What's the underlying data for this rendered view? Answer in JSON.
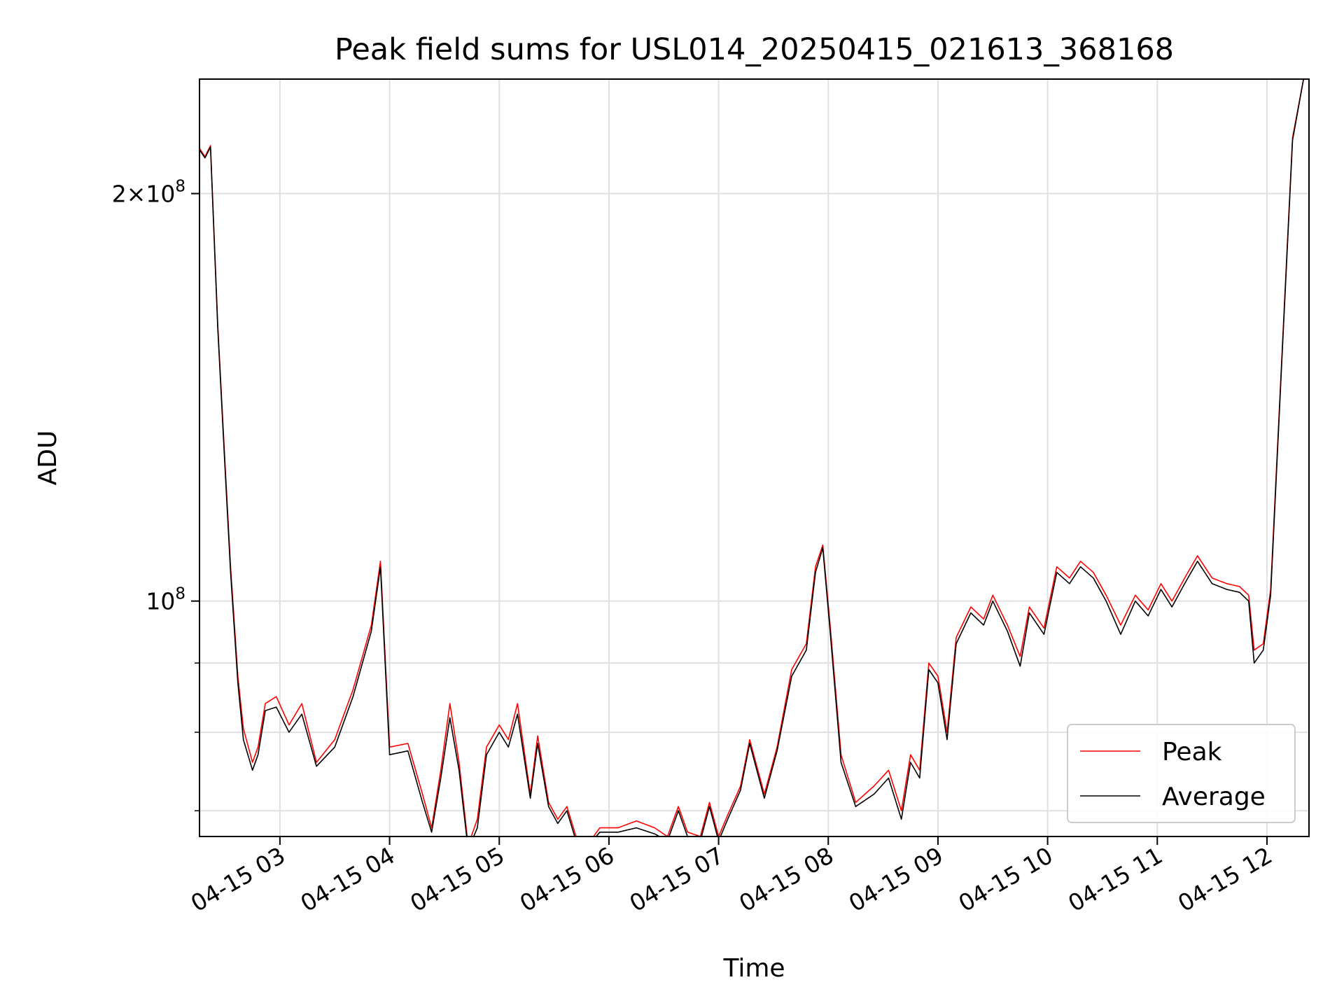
{
  "chart_data": {
    "type": "line",
    "title": "Peak field sums for USL014_20250415_021613_368168",
    "xlabel": "Time",
    "ylabel": "ADU",
    "x_range": [
      "2025-04-15 02:16",
      "2025-04-15 12:23"
    ],
    "ylim": [
      67000000,
      243000000
    ],
    "yscale": "log",
    "grid": true,
    "legend_position": "lower-right",
    "x_ticks": [
      {
        "t": "2025-04-15 03:00",
        "label": "04-15 03"
      },
      {
        "t": "2025-04-15 04:00",
        "label": "04-15 04"
      },
      {
        "t": "2025-04-15 05:00",
        "label": "04-15 05"
      },
      {
        "t": "2025-04-15 06:00",
        "label": "04-15 06"
      },
      {
        "t": "2025-04-15 07:00",
        "label": "04-15 07"
      },
      {
        "t": "2025-04-15 08:00",
        "label": "04-15 08"
      },
      {
        "t": "2025-04-15 09:00",
        "label": "04-15 09"
      },
      {
        "t": "2025-04-15 10:00",
        "label": "04-15 10"
      },
      {
        "t": "2025-04-15 11:00",
        "label": "04-15 11"
      },
      {
        "t": "2025-04-15 12:00",
        "label": "04-15 12"
      }
    ],
    "y_major_ticks": [
      {
        "value": 100000000,
        "mantissa": "",
        "exponent": "8"
      },
      {
        "value": 200000000,
        "mantissa": "2×",
        "exponent": "8"
      }
    ],
    "y_minor_ticks": [
      70000000,
      80000000,
      90000000
    ],
    "series": [
      {
        "name": "Peak",
        "color": "#ff0000",
        "points": [
          [
            "2025-04-15 02:16",
            216000000
          ],
          [
            "2025-04-15 02:19",
            213000000
          ],
          [
            "2025-04-15 02:22",
            217000000
          ],
          [
            "2025-04-15 02:26",
            160000000
          ],
          [
            "2025-04-15 02:30",
            126000000
          ],
          [
            "2025-04-15 02:33",
            106000000
          ],
          [
            "2025-04-15 02:37",
            88000000
          ],
          [
            "2025-04-15 02:40",
            80500000
          ],
          [
            "2025-04-15 02:45",
            76000000
          ],
          [
            "2025-04-15 02:48",
            78000000
          ],
          [
            "2025-04-15 02:52",
            84000000
          ],
          [
            "2025-04-15 02:58",
            85000000
          ],
          [
            "2025-04-15 03:05",
            81000000
          ],
          [
            "2025-04-15 03:12",
            84000000
          ],
          [
            "2025-04-15 03:20",
            76000000
          ],
          [
            "2025-04-15 03:30",
            79000000
          ],
          [
            "2025-04-15 03:40",
            86000000
          ],
          [
            "2025-04-15 03:50",
            96000000
          ],
          [
            "2025-04-15 03:55",
            107000000
          ],
          [
            "2025-04-15 04:00",
            78000000
          ],
          [
            "2025-04-15 04:10",
            78500000
          ],
          [
            "2025-04-15 04:18",
            72000000
          ],
          [
            "2025-04-15 04:23",
            68000000
          ],
          [
            "2025-04-15 04:28",
            75000000
          ],
          [
            "2025-04-15 04:33",
            84000000
          ],
          [
            "2025-04-15 04:38",
            76000000
          ],
          [
            "2025-04-15 04:43",
            66000000
          ],
          [
            "2025-04-15 04:48",
            69000000
          ],
          [
            "2025-04-15 04:53",
            78000000
          ],
          [
            "2025-04-15 05:00",
            81000000
          ],
          [
            "2025-04-15 05:05",
            79000000
          ],
          [
            "2025-04-15 05:10",
            84000000
          ],
          [
            "2025-04-15 05:17",
            72000000
          ],
          [
            "2025-04-15 05:21",
            79500000
          ],
          [
            "2025-04-15 05:27",
            71000000
          ],
          [
            "2025-04-15 05:32",
            69000000
          ],
          [
            "2025-04-15 05:37",
            70500000
          ],
          [
            "2025-04-15 05:42",
            67000000
          ],
          [
            "2025-04-15 05:48",
            66000000
          ],
          [
            "2025-04-15 05:55",
            68000000
          ],
          [
            "2025-04-15 06:05",
            68000000
          ],
          [
            "2025-04-15 06:15",
            68800000
          ],
          [
            "2025-04-15 06:25",
            68000000
          ],
          [
            "2025-04-15 06:32",
            67000000
          ],
          [
            "2025-04-15 06:38",
            70500000
          ],
          [
            "2025-04-15 06:43",
            67500000
          ],
          [
            "2025-04-15 06:50",
            67000000
          ],
          [
            "2025-04-15 06:55",
            71000000
          ],
          [
            "2025-04-15 07:00",
            67000000
          ],
          [
            "2025-04-15 07:05",
            69500000
          ],
          [
            "2025-04-15 07:12",
            73000000
          ],
          [
            "2025-04-15 07:17",
            79000000
          ],
          [
            "2025-04-15 07:25",
            72000000
          ],
          [
            "2025-04-15 07:32",
            78000000
          ],
          [
            "2025-04-15 07:40",
            89000000
          ],
          [
            "2025-04-15 07:48",
            93000000
          ],
          [
            "2025-04-15 07:53",
            106000000
          ],
          [
            "2025-04-15 07:57",
            110000000
          ],
          [
            "2025-04-15 08:01",
            96000000
          ],
          [
            "2025-04-15 08:07",
            77000000
          ],
          [
            "2025-04-15 08:15",
            71000000
          ],
          [
            "2025-04-15 08:25",
            73000000
          ],
          [
            "2025-04-15 08:33",
            75000000
          ],
          [
            "2025-04-15 08:40",
            70000000
          ],
          [
            "2025-04-15 08:45",
            77000000
          ],
          [
            "2025-04-15 08:50",
            75000000
          ],
          [
            "2025-04-15 08:55",
            90000000
          ],
          [
            "2025-04-15 09:00",
            88000000
          ],
          [
            "2025-04-15 09:05",
            80000000
          ],
          [
            "2025-04-15 09:10",
            94000000
          ],
          [
            "2025-04-15 09:18",
            99000000
          ],
          [
            "2025-04-15 09:25",
            97000000
          ],
          [
            "2025-04-15 09:30",
            101000000
          ],
          [
            "2025-04-15 09:38",
            96000000
          ],
          [
            "2025-04-15 09:45",
            91000000
          ],
          [
            "2025-04-15 09:50",
            99000000
          ],
          [
            "2025-04-15 09:58",
            95500000
          ],
          [
            "2025-04-15 10:05",
            106000000
          ],
          [
            "2025-04-15 10:12",
            104000000
          ],
          [
            "2025-04-15 10:18",
            107000000
          ],
          [
            "2025-04-15 10:25",
            105000000
          ],
          [
            "2025-04-15 10:32",
            101000000
          ],
          [
            "2025-04-15 10:40",
            96000000
          ],
          [
            "2025-04-15 10:48",
            101000000
          ],
          [
            "2025-04-15 10:55",
            98500000
          ],
          [
            "2025-04-15 11:02",
            103000000
          ],
          [
            "2025-04-15 11:08",
            100000000
          ],
          [
            "2025-04-15 11:15",
            104000000
          ],
          [
            "2025-04-15 11:22",
            108000000
          ],
          [
            "2025-04-15 11:30",
            104000000
          ],
          [
            "2025-04-15 11:38",
            103000000
          ],
          [
            "2025-04-15 11:45",
            102500000
          ],
          [
            "2025-04-15 11:50",
            101000000
          ],
          [
            "2025-04-15 11:53",
            92000000
          ],
          [
            "2025-04-15 11:58",
            93000000
          ],
          [
            "2025-04-15 12:02",
            102000000
          ],
          [
            "2025-04-15 12:08",
            150000000
          ],
          [
            "2025-04-15 12:14",
            220000000
          ],
          [
            "2025-04-15 12:20",
            243000000
          ]
        ]
      },
      {
        "name": "Average",
        "color": "#000000",
        "points": [
          [
            "2025-04-15 02:16",
            215500000
          ],
          [
            "2025-04-15 02:19",
            212500000
          ],
          [
            "2025-04-15 02:22",
            216500000
          ],
          [
            "2025-04-15 02:26",
            159000000
          ],
          [
            "2025-04-15 02:30",
            125000000
          ],
          [
            "2025-04-15 02:33",
            105000000
          ],
          [
            "2025-04-15 02:37",
            87000000
          ],
          [
            "2025-04-15 02:40",
            79000000
          ],
          [
            "2025-04-15 02:45",
            75000000
          ],
          [
            "2025-04-15 02:48",
            77000000
          ],
          [
            "2025-04-15 02:52",
            83000000
          ],
          [
            "2025-04-15 02:58",
            83500000
          ],
          [
            "2025-04-15 03:05",
            80000000
          ],
          [
            "2025-04-15 03:12",
            82500000
          ],
          [
            "2025-04-15 03:20",
            75500000
          ],
          [
            "2025-04-15 03:30",
            78000000
          ],
          [
            "2025-04-15 03:40",
            85000000
          ],
          [
            "2025-04-15 03:50",
            95000000
          ],
          [
            "2025-04-15 03:55",
            106000000
          ],
          [
            "2025-04-15 04:00",
            77000000
          ],
          [
            "2025-04-15 04:10",
            77500000
          ],
          [
            "2025-04-15 04:18",
            71000000
          ],
          [
            "2025-04-15 04:23",
            67500000
          ],
          [
            "2025-04-15 04:28",
            74000000
          ],
          [
            "2025-04-15 04:33",
            82000000
          ],
          [
            "2025-04-15 04:38",
            75000000
          ],
          [
            "2025-04-15 04:43",
            65500000
          ],
          [
            "2025-04-15 04:48",
            68000000
          ],
          [
            "2025-04-15 04:53",
            77000000
          ],
          [
            "2025-04-15 05:00",
            80000000
          ],
          [
            "2025-04-15 05:05",
            78000000
          ],
          [
            "2025-04-15 05:10",
            82500000
          ],
          [
            "2025-04-15 05:17",
            71500000
          ],
          [
            "2025-04-15 05:21",
            78500000
          ],
          [
            "2025-04-15 05:27",
            70500000
          ],
          [
            "2025-04-15 05:32",
            68500000
          ],
          [
            "2025-04-15 05:37",
            70000000
          ],
          [
            "2025-04-15 05:42",
            66500000
          ],
          [
            "2025-04-15 05:48",
            65800000
          ],
          [
            "2025-04-15 05:55",
            67500000
          ],
          [
            "2025-04-15 06:05",
            67500000
          ],
          [
            "2025-04-15 06:15",
            68000000
          ],
          [
            "2025-04-15 06:25",
            67300000
          ],
          [
            "2025-04-15 06:32",
            66500000
          ],
          [
            "2025-04-15 06:38",
            70000000
          ],
          [
            "2025-04-15 06:43",
            67000000
          ],
          [
            "2025-04-15 06:50",
            66500000
          ],
          [
            "2025-04-15 06:55",
            70500000
          ],
          [
            "2025-04-15 07:00",
            66500000
          ],
          [
            "2025-04-15 07:05",
            69000000
          ],
          [
            "2025-04-15 07:12",
            72500000
          ],
          [
            "2025-04-15 07:17",
            78500000
          ],
          [
            "2025-04-15 07:25",
            71500000
          ],
          [
            "2025-04-15 07:32",
            77500000
          ],
          [
            "2025-04-15 07:40",
            88000000
          ],
          [
            "2025-04-15 07:48",
            92000000
          ],
          [
            "2025-04-15 07:53",
            105000000
          ],
          [
            "2025-04-15 07:57",
            109500000
          ],
          [
            "2025-04-15 08:01",
            95000000
          ],
          [
            "2025-04-15 08:07",
            76000000
          ],
          [
            "2025-04-15 08:15",
            70500000
          ],
          [
            "2025-04-15 08:25",
            72000000
          ],
          [
            "2025-04-15 08:33",
            74000000
          ],
          [
            "2025-04-15 08:40",
            69000000
          ],
          [
            "2025-04-15 08:45",
            76000000
          ],
          [
            "2025-04-15 08:50",
            74000000
          ],
          [
            "2025-04-15 08:55",
            89000000
          ],
          [
            "2025-04-15 09:00",
            87000000
          ],
          [
            "2025-04-15 09:05",
            79000000
          ],
          [
            "2025-04-15 09:10",
            93000000
          ],
          [
            "2025-04-15 09:18",
            98000000
          ],
          [
            "2025-04-15 09:25",
            96000000
          ],
          [
            "2025-04-15 09:30",
            100000000
          ],
          [
            "2025-04-15 09:38",
            95000000
          ],
          [
            "2025-04-15 09:45",
            89500000
          ],
          [
            "2025-04-15 09:50",
            98000000
          ],
          [
            "2025-04-15 09:58",
            94500000
          ],
          [
            "2025-04-15 10:05",
            105000000
          ],
          [
            "2025-04-15 10:12",
            103000000
          ],
          [
            "2025-04-15 10:18",
            106000000
          ],
          [
            "2025-04-15 10:25",
            104000000
          ],
          [
            "2025-04-15 10:32",
            100000000
          ],
          [
            "2025-04-15 10:40",
            94500000
          ],
          [
            "2025-04-15 10:48",
            100000000
          ],
          [
            "2025-04-15 10:55",
            97500000
          ],
          [
            "2025-04-15 11:02",
            102000000
          ],
          [
            "2025-04-15 11:08",
            99000000
          ],
          [
            "2025-04-15 11:15",
            103000000
          ],
          [
            "2025-04-15 11:22",
            107000000
          ],
          [
            "2025-04-15 11:30",
            103000000
          ],
          [
            "2025-04-15 11:38",
            102000000
          ],
          [
            "2025-04-15 11:45",
            101500000
          ],
          [
            "2025-04-15 11:50",
            100000000
          ],
          [
            "2025-04-15 11:53",
            90000000
          ],
          [
            "2025-04-15 11:58",
            92000000
          ],
          [
            "2025-04-15 12:02",
            101000000
          ],
          [
            "2025-04-15 12:08",
            149000000
          ],
          [
            "2025-04-15 12:14",
            219000000
          ],
          [
            "2025-04-15 12:20",
            243000000
          ]
        ]
      }
    ]
  }
}
